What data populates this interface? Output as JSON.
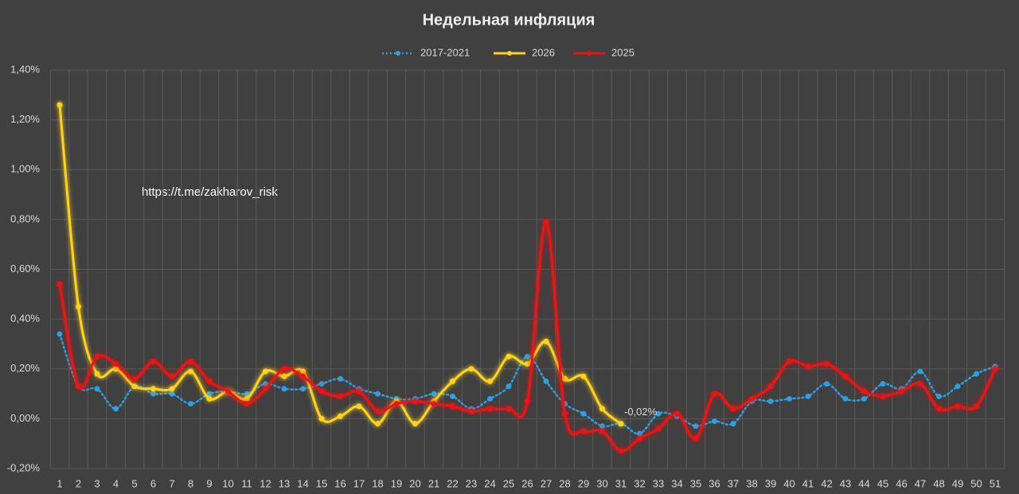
{
  "chart_data": {
    "type": "line",
    "title": "Недельная инфляция",
    "annotation": "https://t.me/zakharov_risk",
    "categories": [
      "1",
      "2",
      "3",
      "4",
      "5",
      "6",
      "7",
      "8",
      "9",
      "10",
      "11",
      "12",
      "13",
      "14",
      "15",
      "16",
      "17",
      "18",
      "19",
      "20",
      "21",
      "22",
      "23",
      "24",
      "25",
      "26",
      "27",
      "28",
      "29",
      "30",
      "31",
      "32",
      "33",
      "34",
      "35",
      "36",
      "37",
      "38",
      "39",
      "40",
      "41",
      "42",
      "43",
      "44",
      "45",
      "46",
      "47",
      "48",
      "49",
      "50",
      "51"
    ],
    "series": [
      {
        "name": "2017-2021",
        "color": "#2f9fe0",
        "line_style": "dotted",
        "values": [
          0.34,
          0.13,
          0.12,
          0.04,
          0.13,
          0.1,
          0.1,
          0.06,
          0.1,
          0.11,
          0.1,
          0.14,
          0.12,
          0.12,
          0.14,
          0.16,
          0.12,
          0.1,
          0.08,
          0.08,
          0.1,
          0.09,
          0.04,
          0.08,
          0.13,
          0.25,
          0.15,
          0.06,
          0.02,
          -0.03,
          -0.02,
          -0.06,
          0.02,
          0.01,
          -0.03,
          -0.01,
          -0.02,
          0.07,
          0.07,
          0.08,
          0.09,
          0.14,
          0.08,
          0.08,
          0.14,
          0.12,
          0.19,
          0.09,
          0.13,
          0.18,
          0.21
        ]
      },
      {
        "name": "2026",
        "color": "#ffd21f",
        "line_style": "solid",
        "values": [
          1.26,
          0.45,
          0.18,
          0.2,
          0.13,
          0.12,
          0.12,
          0.19,
          0.08,
          0.11,
          0.08,
          0.19,
          0.17,
          0.19,
          0.0,
          0.01,
          0.05,
          -0.02,
          0.07,
          -0.02,
          0.07,
          0.15,
          0.2,
          0.15,
          0.25,
          0.22,
          0.31,
          0.16,
          0.17,
          0.04,
          -0.02,
          null,
          null,
          null,
          null,
          null,
          null,
          null,
          null,
          null,
          null,
          null,
          null,
          null,
          null,
          null,
          null,
          null,
          null,
          null,
          null
        ],
        "value_labels": [
          null,
          null,
          null,
          null,
          null,
          null,
          null,
          null,
          null,
          null,
          null,
          null,
          null,
          null,
          null,
          null,
          null,
          null,
          null,
          null,
          null,
          null,
          null,
          null,
          null,
          null,
          null,
          null,
          null,
          null,
          "-0,02%",
          null,
          null,
          null,
          null,
          null,
          null,
          null,
          null,
          null,
          null,
          null,
          null,
          null,
          null,
          null,
          null,
          null,
          null,
          null,
          null
        ]
      },
      {
        "name": "2025",
        "color": "#e81212",
        "line_style": "solid",
        "values": [
          0.54,
          0.13,
          0.25,
          0.22,
          0.16,
          0.23,
          0.17,
          0.23,
          0.15,
          0.11,
          0.06,
          0.12,
          0.2,
          0.17,
          0.11,
          0.09,
          0.11,
          0.03,
          0.06,
          0.07,
          0.06,
          0.05,
          0.03,
          0.04,
          0.04,
          0.07,
          0.79,
          0.02,
          -0.05,
          -0.05,
          -0.13,
          -0.08,
          -0.04,
          0.02,
          -0.08,
          0.1,
          0.04,
          0.08,
          0.13,
          0.23,
          0.21,
          0.22,
          0.17,
          0.11,
          0.09,
          0.11,
          0.14,
          0.04,
          0.05,
          0.05,
          0.2
        ]
      }
    ],
    "ylim": [
      -0.2,
      1.4
    ],
    "yticks": [
      {
        "value": -0.2,
        "label": "-0,20%"
      },
      {
        "value": 0,
        "label": "0,00%"
      },
      {
        "value": 0.2,
        "label": "0,20%"
      },
      {
        "value": 0.4,
        "label": "0,40%"
      },
      {
        "value": 0.6,
        "label": "0,60%"
      },
      {
        "value": 0.8,
        "label": "0,80%"
      },
      {
        "value": 1.0,
        "label": "1,00%"
      },
      {
        "value": 1.2,
        "label": "1,20%"
      },
      {
        "value": 1.4,
        "label": "1,40%"
      }
    ],
    "grid": true,
    "legend": "top"
  }
}
